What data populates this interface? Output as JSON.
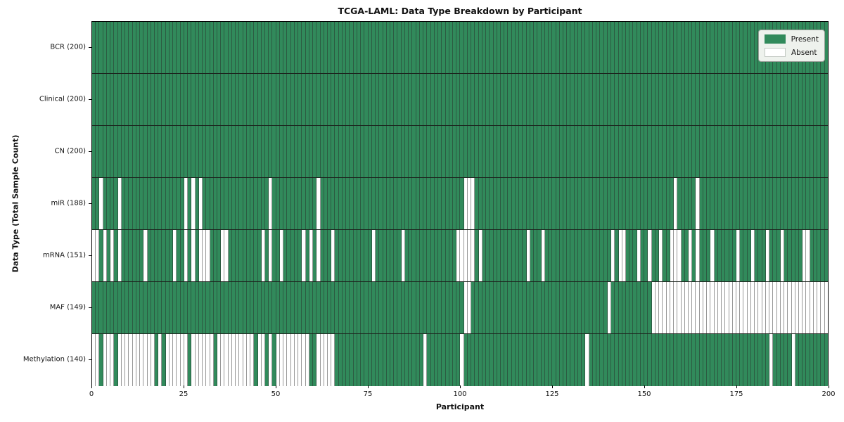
{
  "title": "TCGA-LAML: Data Type Breakdown by Participant",
  "xlabel": "Participant",
  "ylabel": "Data Type (Total Sample Count)",
  "legend": {
    "present_label": "Present",
    "absent_label": "Absent"
  },
  "colors": {
    "present": "#318a5b",
    "absent": "#ffffff",
    "cell_border": "rgba(40,40,40,0.48)",
    "row_border": "#1c241e",
    "legend_bg": "#eef2ed"
  },
  "x_ticks": [
    0,
    25,
    50,
    75,
    100,
    125,
    150,
    175,
    200
  ],
  "n_participants": 200,
  "chart_data": {
    "type": "heatmap",
    "x_axis": "Participant index 0-199",
    "value_encoding": {
      "present": "green cell",
      "absent": "white cell"
    },
    "rows": [
      {
        "label": "BCR (200)",
        "name": "BCR",
        "total_present": 200,
        "absent": []
      },
      {
        "label": "Clinical (200)",
        "name": "Clinical",
        "total_present": 200,
        "absent": []
      },
      {
        "label": "CN (200)",
        "name": "CN",
        "total_present": 200,
        "absent": []
      },
      {
        "label": "miR (188)",
        "name": "miR",
        "total_present": 188,
        "absent": [
          2,
          7,
          25,
          27,
          29,
          48,
          61,
          101,
          102,
          103,
          158,
          164
        ]
      },
      {
        "label": "mRNA (151)",
        "name": "mRNA",
        "total_present": 151,
        "absent": [
          0,
          1,
          3,
          5,
          7,
          14,
          22,
          25,
          27,
          29,
          30,
          31,
          35,
          36,
          46,
          48,
          51,
          57,
          59,
          61,
          65,
          76,
          84,
          99,
          100,
          101,
          102,
          103,
          105,
          118,
          122,
          141,
          143,
          144,
          148,
          151,
          154,
          157,
          158,
          159,
          162,
          164,
          168,
          175,
          179,
          183,
          187,
          193,
          194
        ]
      },
      {
        "label": "MAF (149)",
        "name": "MAF",
        "total_present": 149,
        "absent": [
          101,
          102,
          140,
          152,
          153,
          154,
          155,
          156,
          157,
          158,
          159,
          160,
          161,
          162,
          163,
          164,
          165,
          166,
          167,
          168,
          169,
          170,
          171,
          172,
          173,
          174,
          175,
          176,
          177,
          178,
          179,
          180,
          181,
          182,
          183,
          184,
          185,
          186,
          187,
          188,
          189,
          190,
          191,
          192,
          193,
          194,
          195,
          196,
          197,
          198,
          199
        ]
      },
      {
        "label": "Methylation (140)",
        "name": "Methylation",
        "total_present": 140,
        "absent": [
          0,
          1,
          3,
          4,
          5,
          7,
          8,
          9,
          10,
          11,
          12,
          13,
          14,
          15,
          16,
          18,
          20,
          21,
          22,
          23,
          24,
          25,
          27,
          28,
          29,
          30,
          31,
          32,
          34,
          35,
          36,
          37,
          38,
          39,
          40,
          41,
          42,
          43,
          45,
          46,
          48,
          50,
          51,
          52,
          53,
          54,
          55,
          56,
          57,
          58,
          61,
          62,
          63,
          64,
          65,
          90,
          100,
          134,
          184,
          190
        ]
      }
    ]
  }
}
